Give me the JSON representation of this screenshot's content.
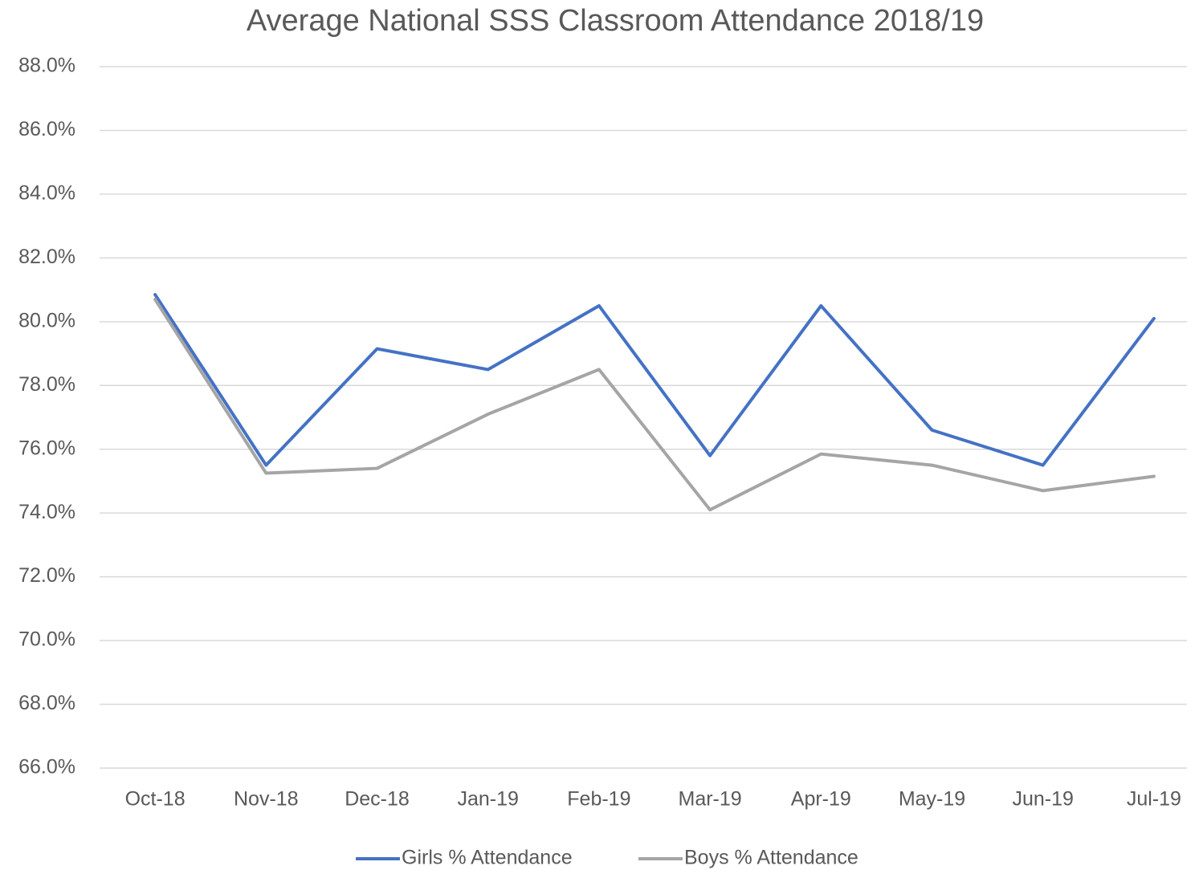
{
  "chart_data": {
    "type": "line",
    "title": "Average National SSS Classroom Attendance 2018/19",
    "categories": [
      "Oct-18",
      "Nov-18",
      "Dec-18",
      "Jan-19",
      "Feb-19",
      "Mar-19",
      "Apr-19",
      "May-19",
      "Jun-19",
      "Jul-19"
    ],
    "series": [
      {
        "name": "Girls % Attendance",
        "color": "#4472c4",
        "values": [
          80.85,
          75.5,
          79.15,
          78.5,
          80.5,
          75.8,
          80.5,
          76.6,
          75.5,
          80.1
        ]
      },
      {
        "name": "Boys % Attendance",
        "color": "#a5a5a5",
        "values": [
          80.7,
          75.25,
          75.4,
          77.1,
          78.5,
          74.1,
          75.85,
          75.5,
          74.7,
          75.15
        ]
      }
    ],
    "ylim": [
      66,
      88
    ],
    "yticks": [
      {
        "value": 66,
        "label": "66.0%"
      },
      {
        "value": 68,
        "label": "68.0%"
      },
      {
        "value": 70,
        "label": "70.0%"
      },
      {
        "value": 72,
        "label": "72.0%"
      },
      {
        "value": 74,
        "label": "74.0%"
      },
      {
        "value": 76,
        "label": "76.0%"
      },
      {
        "value": 78,
        "label": "78.0%"
      },
      {
        "value": 80,
        "label": "80.0%"
      },
      {
        "value": 82,
        "label": "82.0%"
      },
      {
        "value": 84,
        "label": "84.0%"
      },
      {
        "value": 86,
        "label": "86.0%"
      },
      {
        "value": 88,
        "label": "88.0%"
      }
    ],
    "grid": true,
    "legend": "bottom"
  }
}
